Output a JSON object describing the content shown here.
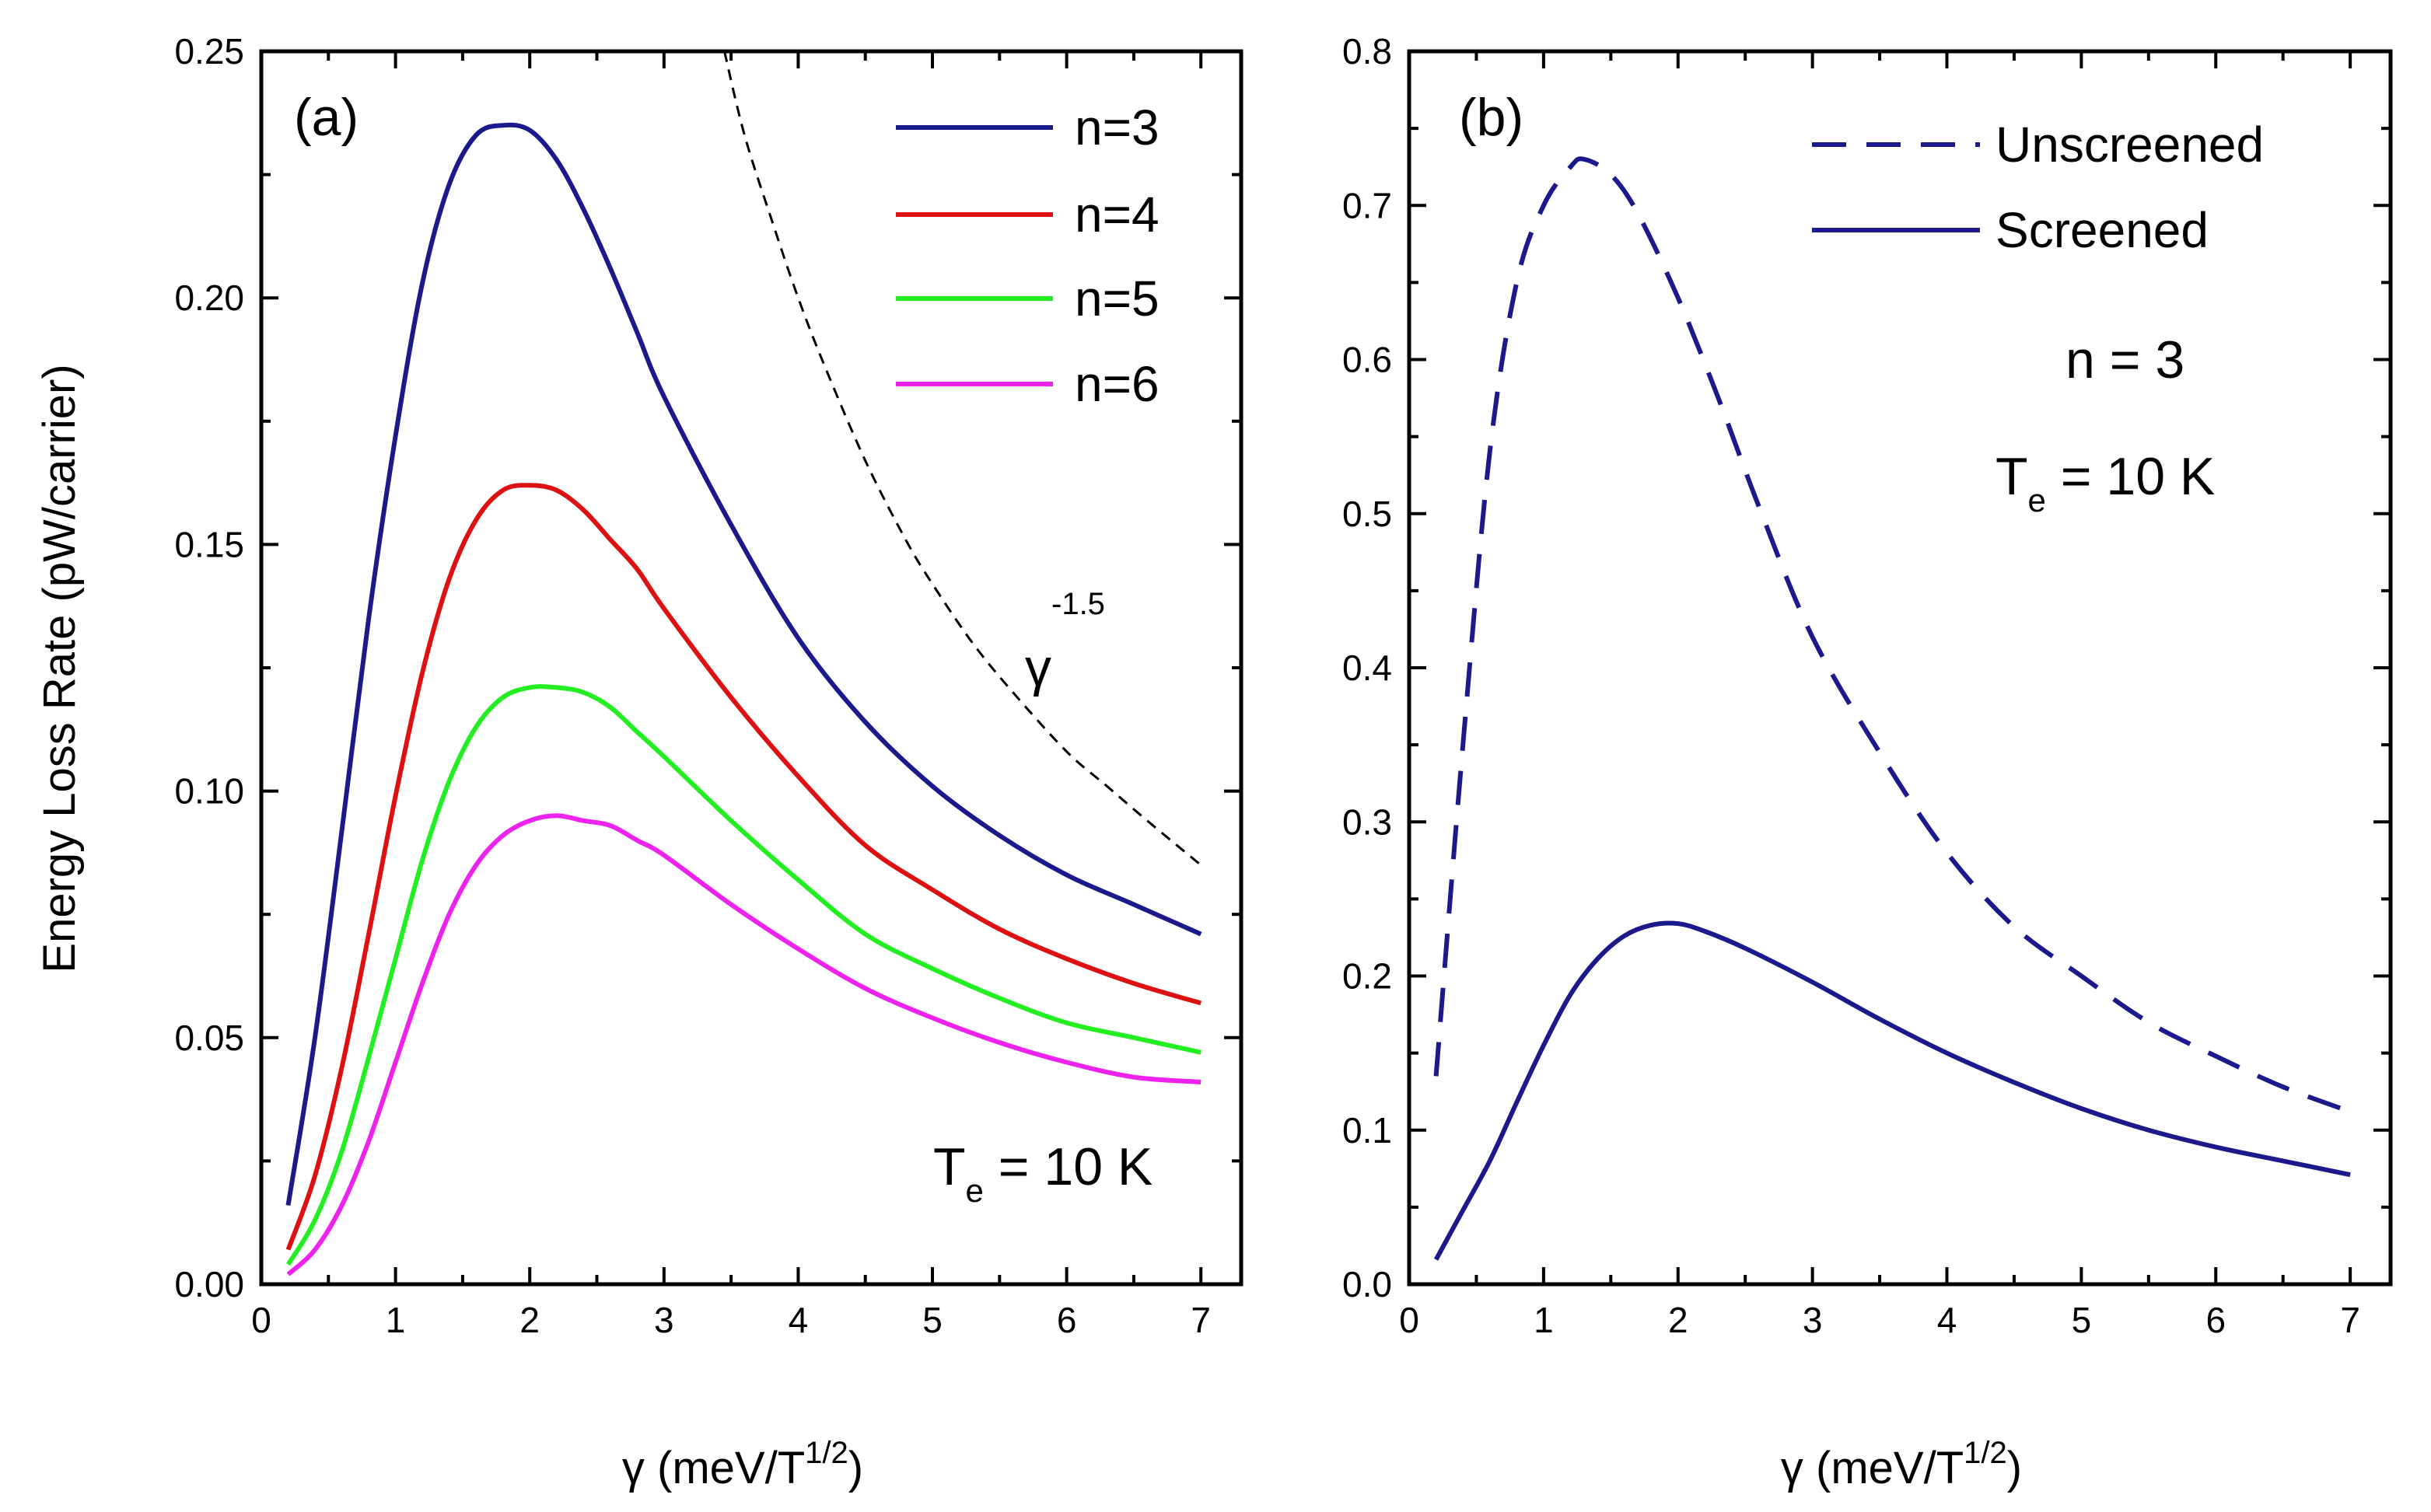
{
  "chart_data": [
    {
      "type": "line",
      "panel_label": "(a)",
      "ylabel": "Energy Loss Rate (pW/carrier)",
      "xlabel": {
        "symbol": "γ",
        "main": " (meV/T",
        "sup": "1/2",
        "tail": ")"
      },
      "xlim": [
        0,
        7.3
      ],
      "ylim": [
        0,
        0.25
      ],
      "xticks": [
        0,
        1,
        2,
        3,
        4,
        5,
        6,
        7
      ],
      "xtick_labels": [
        "0",
        "1",
        "2",
        "3",
        "4",
        "5",
        "6",
        "7"
      ],
      "yticks": [
        0,
        0.05,
        0.1,
        0.15,
        0.2,
        0.25
      ],
      "ytick_labels": [
        "0.00",
        "0.05",
        "0.10",
        "0.15",
        "0.20",
        "0.25"
      ],
      "x": [
        0.2,
        0.4,
        0.6,
        0.8,
        1.0,
        1.2,
        1.4,
        1.6,
        1.8,
        2.0,
        2.2,
        2.4,
        2.6,
        2.8,
        3.0,
        3.5,
        4.0,
        4.5,
        5.0,
        5.5,
        6.0,
        6.5,
        7.0
      ],
      "series": [
        {
          "name": "n=3",
          "color": "#1a1a8c",
          "style": "solid",
          "values": [
            0.016,
            0.05,
            0.092,
            0.135,
            0.172,
            0.203,
            0.223,
            0.233,
            0.235,
            0.234,
            0.228,
            0.218,
            0.206,
            0.193,
            0.18,
            0.154,
            0.131,
            0.114,
            0.101,
            0.091,
            0.083,
            0.077,
            0.071
          ]
        },
        {
          "name": "n=4",
          "color": "#dd1111",
          "style": "solid",
          "values": [
            0.007,
            0.022,
            0.044,
            0.071,
            0.099,
            0.124,
            0.143,
            0.155,
            0.161,
            0.162,
            0.161,
            0.157,
            0.151,
            0.145,
            0.137,
            0.119,
            0.103,
            0.089,
            0.08,
            0.072,
            0.066,
            0.061,
            0.057
          ]
        },
        {
          "name": "n=5",
          "color": "#22ee22",
          "style": "solid",
          "values": [
            0.004,
            0.013,
            0.027,
            0.046,
            0.066,
            0.086,
            0.102,
            0.113,
            0.119,
            0.121,
            0.121,
            0.12,
            0.117,
            0.112,
            0.107,
            0.094,
            0.082,
            0.071,
            0.064,
            0.058,
            0.053,
            0.05,
            0.047
          ]
        },
        {
          "name": "n=6",
          "color": "#ee22ee",
          "style": "solid",
          "values": [
            0.002,
            0.007,
            0.016,
            0.029,
            0.045,
            0.061,
            0.075,
            0.085,
            0.091,
            0.094,
            0.095,
            0.094,
            0.093,
            0.09,
            0.087,
            0.077,
            0.068,
            0.06,
            0.054,
            0.049,
            0.045,
            0.042,
            0.041
          ]
        }
      ],
      "reference_curve": {
        "name": "γ^-1.5",
        "color": "#000000",
        "style": "dashed",
        "x": [
          3.45,
          3.6,
          3.8,
          4.0,
          4.2,
          4.5,
          4.8,
          5.0,
          5.3,
          5.6,
          6.0,
          6.3,
          6.6,
          7.0
        ],
        "values": [
          0.25,
          0.233,
          0.216,
          0.2,
          0.186,
          0.167,
          0.151,
          0.142,
          0.13,
          0.12,
          0.108,
          0.101,
          0.094,
          0.085
        ]
      },
      "annotations": {
        "gamma_power": {
          "base": "γ",
          "sup": "-1.5"
        },
        "temperature": {
          "base": "T",
          "sub": "e",
          "rest": " = 10 K"
        }
      }
    },
    {
      "type": "line",
      "panel_label": "(b)",
      "xlabel": {
        "symbol": "γ",
        "main": " (meV/T",
        "sup": "1/2",
        "tail": ")"
      },
      "xlim": [
        0,
        7.3
      ],
      "ylim": [
        0,
        0.8
      ],
      "xticks": [
        0,
        1,
        2,
        3,
        4,
        5,
        6,
        7
      ],
      "xtick_labels": [
        "0",
        "1",
        "2",
        "3",
        "4",
        "5",
        "6",
        "7"
      ],
      "yticks": [
        0,
        0.1,
        0.2,
        0.3,
        0.4,
        0.5,
        0.6,
        0.7,
        0.8
      ],
      "ytick_labels": [
        "0.0",
        "0.1",
        "0.2",
        "0.3",
        "0.4",
        "0.5",
        "0.6",
        "0.7",
        "0.8"
      ],
      "series": [
        {
          "name": "Unscreened",
          "color": "#1a1a8c",
          "style": "dashed",
          "x": [
            0.2,
            0.4,
            0.6,
            0.8,
            1.0,
            1.2,
            1.3,
            1.5,
            1.7,
            2.0,
            2.3,
            2.6,
            3.0,
            3.5,
            4.0,
            4.5,
            5.0,
            5.5,
            6.0,
            6.5,
            7.0
          ],
          "values": [
            0.135,
            0.35,
            0.54,
            0.65,
            0.7,
            0.725,
            0.73,
            0.72,
            0.695,
            0.64,
            0.575,
            0.505,
            0.42,
            0.345,
            0.28,
            0.232,
            0.2,
            0.17,
            0.148,
            0.128,
            0.112
          ]
        },
        {
          "name": "Screened",
          "color": "#1a1a8c",
          "style": "solid",
          "x": [
            0.2,
            0.4,
            0.6,
            0.8,
            1.0,
            1.2,
            1.4,
            1.6,
            1.8,
            2.0,
            2.2,
            2.5,
            3.0,
            3.5,
            4.0,
            4.5,
            5.0,
            5.5,
            6.0,
            6.5,
            7.0
          ],
          "values": [
            0.016,
            0.048,
            0.08,
            0.118,
            0.155,
            0.188,
            0.211,
            0.226,
            0.233,
            0.234,
            0.229,
            0.218,
            0.196,
            0.172,
            0.15,
            0.131,
            0.114,
            0.1,
            0.089,
            0.08,
            0.071
          ]
        }
      ],
      "annotations": {
        "n_label": "n = 3",
        "temperature": {
          "base": "T",
          "sub": "e",
          "rest": " = 10 K"
        }
      }
    }
  ]
}
